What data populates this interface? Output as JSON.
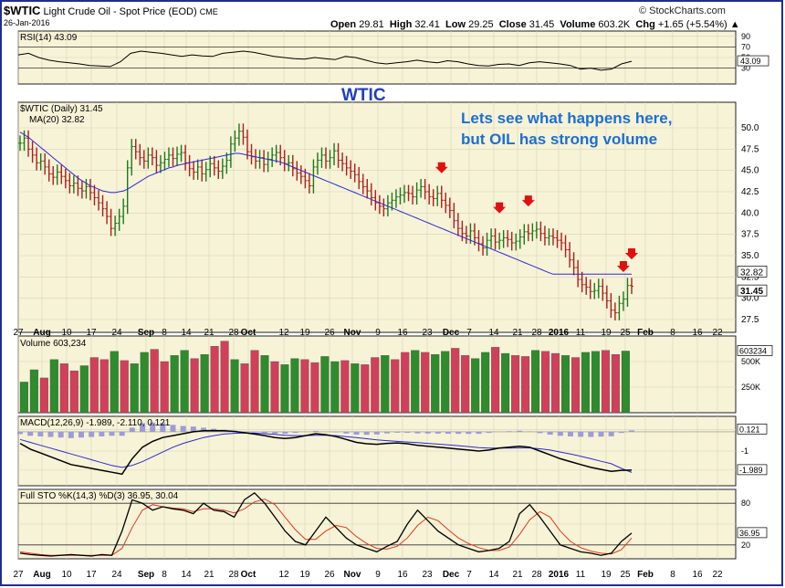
{
  "header": {
    "symbol": "$WTIC",
    "name": "Light Crude Oil - Spot Price (EOD)",
    "exchange": "CME",
    "date": "26-Jan-2016",
    "open_label": "Open",
    "open": "29.81",
    "high_label": "High",
    "high": "32.41",
    "low_label": "Low",
    "low": "29.25",
    "close_label": "Close",
    "close": "31.45",
    "volume_label": "Volume",
    "volume": "603.2K",
    "chg_label": "Chg",
    "chg": "+1.65 (+5.54%) ▲",
    "copyright": "© StockCharts.com"
  },
  "chart_data": [
    {
      "type": "line",
      "panel": "rsi",
      "title": "RSI(14) 43.09",
      "ylim": [
        0,
        100
      ],
      "yticks": [
        30,
        50,
        70,
        90
      ],
      "reference_lines": [
        30,
        70
      ],
      "last_label": "43.09",
      "values": [
        55,
        58,
        50,
        45,
        42,
        40,
        38,
        35,
        34,
        33,
        42,
        58,
        62,
        60,
        58,
        55,
        52,
        55,
        53,
        52,
        58,
        60,
        62,
        60,
        56,
        52,
        50,
        48,
        47,
        50,
        48,
        46,
        52,
        50,
        45,
        40,
        38,
        40,
        42,
        45,
        42,
        40,
        44,
        42,
        38,
        35,
        34,
        37,
        38,
        35,
        40,
        42,
        40,
        38,
        35,
        28,
        30,
        26,
        28,
        38,
        43
      ]
    },
    {
      "type": "line",
      "panel": "price",
      "title": "$WTIC (Daily) 31.45",
      "series": [
        {
          "name": "$WTIC (Daily) 31.45",
          "values": [
            48.2,
            48.8,
            47.5,
            46.8,
            45.9,
            46.1,
            45.4,
            44.6,
            44.2,
            44.8,
            44.3,
            43.8,
            43.2,
            43.5,
            42.9,
            42.6,
            43.1,
            42.4,
            41.8,
            41.2,
            40.5,
            39.6,
            38.2,
            38.8,
            39.6,
            40.8,
            45.3,
            47.8,
            47.2,
            46.5,
            46.1,
            46.8,
            46.5,
            45.6,
            45.9,
            46.3,
            46.8,
            46.4,
            46.9,
            47.1,
            45.9,
            45.2,
            44.8,
            45.4,
            44.6,
            45.1,
            45.8,
            45.3,
            44.9,
            45.5,
            46.2,
            48.1,
            48.8,
            49.6,
            48.9,
            47.2,
            46.6,
            46.1,
            46.5,
            45.7,
            46.3,
            46.8,
            47.1,
            46.5,
            45.8,
            45.9,
            45.2,
            44.7,
            44.3,
            43.8,
            43.2,
            45.4,
            46.2,
            46.8,
            46.1,
            46.5,
            47.3,
            46.2,
            45.8,
            45.3,
            44.9,
            44.5,
            43.7,
            43.1,
            42.6,
            41.8,
            41.2,
            40.8,
            40.5,
            41.2,
            41.5,
            41.9,
            42.1,
            42.4,
            42.3,
            41.9,
            42.7,
            43.1,
            42.5,
            41.9,
            41.7,
            42.3,
            41.5,
            40.9,
            40.3,
            39.1,
            38.2,
            37.6,
            37.3,
            37.9,
            37.1,
            36.4,
            35.9,
            36.8,
            37.3,
            36.6,
            36.8,
            37.1,
            36.9,
            36.5,
            36.7,
            37.2,
            37.8,
            37.6,
            37.9,
            38.1,
            37.6,
            37.1,
            37.3,
            37.1,
            36.8,
            36.5,
            35.7,
            34.5,
            33.6,
            32.2,
            31.6,
            31.3,
            30.8,
            30.9,
            31.4,
            30.6,
            29.7,
            28.6,
            28.3,
            29.4,
            29.9,
            31.5,
            31.4
          ]
        },
        {
          "name": "MA(20) 32.82",
          "values": [
            49.5,
            49.2,
            48.9,
            48.5,
            48.1,
            47.7,
            47.3,
            46.9,
            46.5,
            46.1,
            45.7,
            45.3,
            44.9,
            44.5,
            44.1,
            43.8,
            43.5,
            43.2,
            43.0,
            42.8,
            42.6,
            42.5,
            42.4,
            42.4,
            42.5,
            42.6,
            42.8,
            43.1,
            43.4,
            43.7,
            44.0,
            44.3,
            44.5,
            44.7,
            44.9,
            45.1,
            45.3,
            45.4,
            45.6,
            45.7,
            45.8,
            45.9,
            46.0,
            46.1,
            46.2,
            46.3,
            46.4,
            46.5,
            46.6,
            46.7,
            46.8,
            46.9,
            47.0,
            47.0,
            46.9,
            46.8,
            46.7,
            46.6,
            46.5,
            46.4,
            46.3,
            46.2,
            46.1,
            46.0,
            45.8,
            45.6,
            45.4,
            45.2,
            45.0,
            44.8,
            44.6,
            44.4,
            44.2,
            44.0,
            43.8,
            43.6,
            43.4,
            43.2,
            43.0,
            42.8,
            42.6,
            42.4,
            42.2,
            42.0,
            41.8,
            41.6,
            41.4,
            41.2,
            41.0,
            40.8,
            40.6,
            40.4,
            40.2,
            40.0,
            39.8,
            39.6,
            39.4,
            39.2,
            39.0,
            38.8,
            38.6,
            38.4,
            38.2,
            38.0,
            37.8,
            37.6,
            37.4,
            37.2,
            37.0,
            36.8,
            36.6,
            36.4,
            36.2,
            36.0,
            35.8,
            35.6,
            35.4,
            35.2,
            35.0,
            34.8,
            34.6,
            34.4,
            34.2,
            34.0,
            33.8,
            33.6,
            33.4,
            33.2,
            33.0,
            32.82,
            32.82,
            32.82,
            32.82,
            32.82,
            32.82,
            32.82,
            32.82,
            32.82,
            32.82,
            32.82,
            32.82,
            32.82,
            32.82,
            32.82,
            32.82,
            32.82,
            32.82,
            32.82,
            32.82
          ]
        }
      ],
      "ylim": [
        26,
        53
      ],
      "yticks": [
        27.5,
        30.0,
        32.5,
        35.0,
        37.5,
        40.0,
        42.5,
        45.0,
        47.5,
        50.0
      ],
      "last_labels": [
        "32.82",
        "31.45"
      ],
      "annotations": [
        {
          "text": "WTIC",
          "color": "#1f3fbf"
        },
        {
          "text": "Lets see what happens here,",
          "color": "#1a6fd6"
        },
        {
          "text": "but OIL has strong volume",
          "color": "#1a6fd6"
        }
      ],
      "arrows_on_bars": [
        102,
        116,
        123,
        146,
        157,
        171
      ]
    },
    {
      "type": "bar",
      "panel": "volume",
      "title": "Volume 603,234",
      "ylim": [
        0,
        750000
      ],
      "yticks": [
        "250K",
        "500K",
        "603234"
      ],
      "values": [
        300,
        420,
        340,
        520,
        480,
        410,
        460,
        540,
        520,
        600,
        510,
        480,
        590,
        620,
        500,
        560,
        610,
        530,
        570,
        650,
        700,
        520,
        480,
        610,
        560,
        500,
        470,
        530,
        520,
        490,
        550,
        500,
        510,
        480,
        470,
        540,
        560,
        520,
        590,
        610,
        590,
        570,
        600,
        630,
        560,
        530,
        590,
        640,
        580,
        560,
        550,
        610,
        600,
        580,
        560,
        540,
        590,
        600,
        610,
        570,
        603
      ]
    },
    {
      "type": "line",
      "panel": "macd",
      "title": "MACD(12,26,9) -1.989, -2.110, 0.121",
      "yticks": [
        "0.121",
        "-1",
        "-1.989"
      ],
      "macd": [
        -0.6,
        -0.9,
        -1.1,
        -1.3,
        -1.5,
        -1.7,
        -1.8,
        -1.9,
        -2.0,
        -2.1,
        -2.2,
        -1.4,
        -0.8,
        -0.5,
        -0.3,
        -0.2,
        -0.1,
        0.0,
        0.05,
        0.06,
        0.05,
        0.02,
        -0.05,
        -0.12,
        -0.2,
        -0.3,
        -0.35,
        -0.3,
        -0.2,
        -0.1,
        -0.15,
        -0.25,
        -0.4,
        -0.55,
        -0.62,
        -0.65,
        -0.6,
        -0.58,
        -0.62,
        -0.7,
        -0.75,
        -0.8,
        -0.85,
        -0.9,
        -0.95,
        -1.0,
        -0.95,
        -0.85,
        -0.8,
        -0.75,
        -0.8,
        -1.0,
        -1.2,
        -1.4,
        -1.55,
        -1.7,
        -1.85,
        -1.95,
        -2.05,
        -2.0,
        -1.99
      ],
      "signal": [
        -0.4,
        -0.55,
        -0.7,
        -0.85,
        -1.0,
        -1.15,
        -1.3,
        -1.45,
        -1.6,
        -1.75,
        -1.85,
        -1.75,
        -1.55,
        -1.3,
        -1.05,
        -0.8,
        -0.6,
        -0.45,
        -0.3,
        -0.2,
        -0.12,
        -0.08,
        -0.06,
        -0.07,
        -0.1,
        -0.14,
        -0.18,
        -0.2,
        -0.2,
        -0.18,
        -0.18,
        -0.2,
        -0.25,
        -0.3,
        -0.36,
        -0.42,
        -0.46,
        -0.5,
        -0.53,
        -0.56,
        -0.6,
        -0.64,
        -0.68,
        -0.72,
        -0.77,
        -0.82,
        -0.85,
        -0.85,
        -0.85,
        -0.84,
        -0.84,
        -0.88,
        -0.95,
        -1.05,
        -1.15,
        -1.27,
        -1.4,
        -1.53,
        -1.66,
        -1.9,
        -2.11
      ]
    },
    {
      "type": "line",
      "panel": "stochastic",
      "title": "Full STO %K(14,3) %D(3) 36.95, 30.04",
      "ylim": [
        0,
        100
      ],
      "yticks": [
        "20",
        "36.95",
        "80"
      ],
      "k": [
        8,
        6,
        5,
        4,
        5,
        6,
        5,
        4,
        6,
        5,
        40,
        85,
        80,
        70,
        75,
        72,
        70,
        65,
        80,
        70,
        68,
        60,
        85,
        95,
        80,
        60,
        40,
        25,
        20,
        40,
        60,
        45,
        30,
        20,
        15,
        10,
        18,
        25,
        50,
        70,
        55,
        40,
        30,
        20,
        15,
        10,
        12,
        15,
        25,
        65,
        78,
        60,
        40,
        20,
        15,
        10,
        8,
        5,
        8,
        25,
        37
      ],
      "d": [
        10,
        8,
        6,
        5,
        5,
        5,
        5,
        5,
        5,
        5,
        15,
        45,
        70,
        78,
        75,
        73,
        72,
        68,
        72,
        72,
        70,
        66,
        72,
        82,
        86,
        78,
        60,
        42,
        28,
        28,
        40,
        48,
        45,
        32,
        22,
        15,
        14,
        18,
        30,
        48,
        60,
        55,
        42,
        30,
        22,
        16,
        12,
        12,
        17,
        35,
        56,
        68,
        60,
        40,
        25,
        16,
        11,
        8,
        7,
        13,
        30
      ]
    }
  ],
  "x_axis_labels": [
    "27",
    "Aug",
    "10",
    "17",
    "24",
    "Sep",
    "8",
    "14",
    "21",
    "28",
    "Oct",
    "12",
    "19",
    "26",
    "Nov",
    "9",
    "16",
    "23",
    "Dec",
    "7",
    "14",
    "21",
    "28",
    "2016",
    "11",
    "19",
    "25",
    "Feb",
    "8",
    "16",
    "22"
  ]
}
